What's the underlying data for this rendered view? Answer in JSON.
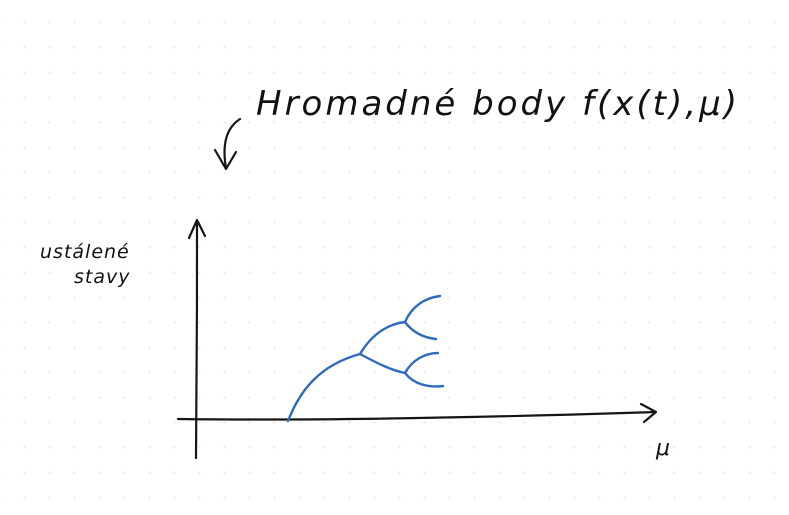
{
  "heading": {
    "text": "Hromadné body f(x(t),μ)"
  },
  "y_axis_label": {
    "line1": "ustálené",
    "line2": "stavy"
  },
  "x_axis_label": "μ",
  "colors": {
    "ink": "#151515",
    "curve": "#2e6bbf"
  },
  "icons": {
    "arrow": "curved-arrow-icon"
  }
}
